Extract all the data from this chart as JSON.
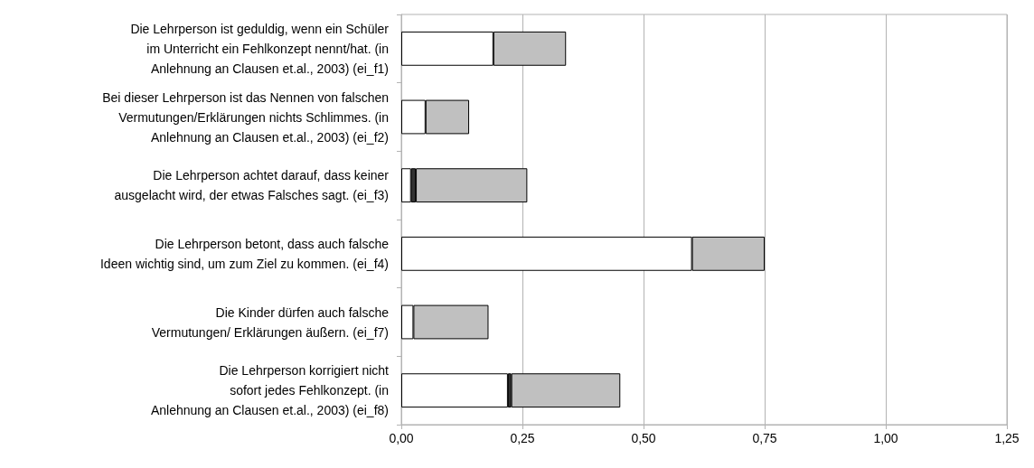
{
  "chart_data": {
    "type": "bar",
    "orientation": "horizontal",
    "stacked": true,
    "categories": [
      "Die Lehrperson ist geduldig, wenn ein Schüler\nim Unterricht ein Fehlkonzept nennt/hat. (in\nAnlehnung an Clausen et.al., 2003) (ei_f1)",
      "Bei dieser Lehrperson ist das Nennen von falschen\nVermutungen/Erklärungen nichts Schlimmes. (in\nAnlehnung an Clausen et.al., 2003) (ei_f2)",
      "Die Lehrperson achtet darauf, dass keiner\nausgelacht wird, der etwas Falsches sagt. (ei_f3)",
      "Die Lehrperson betont, dass auch falsche\nIdeen wichtig sind, um zum Ziel zu kommen. (ei_f4)",
      "Die Kinder dürfen auch falsche\nVermutungen/ Erklärungen äußern. (ei_f7)",
      "Die Lehrperson korrigiert nicht\nsofort jedes Fehlkonzept. (in\nAnlehnung an Clausen et.al., 2003) (ei_f8)"
    ],
    "series": [
      {
        "color": "#ffffff",
        "values": [
          0.19,
          0.05,
          0.02,
          0.6,
          0.025,
          0.22
        ]
      },
      {
        "color": "#333333",
        "values": [
          null,
          null,
          0.01,
          null,
          null,
          0.007
        ]
      },
      {
        "color": "#c0c0c0",
        "values": [
          0.15,
          0.09,
          0.23,
          0.15,
          0.155,
          0.225
        ]
      }
    ],
    "xlim": [
      0,
      1.25
    ],
    "xticks": [
      {
        "value": 0,
        "label": "0,00"
      },
      {
        "value": 0.25,
        "label": "0,25"
      },
      {
        "value": 0.5,
        "label": "0,50"
      },
      {
        "value": 0.75,
        "label": "0,75"
      },
      {
        "value": 1,
        "label": "1,00"
      },
      {
        "value": 1.25,
        "label": "1,25"
      }
    ],
    "grid": "x"
  }
}
